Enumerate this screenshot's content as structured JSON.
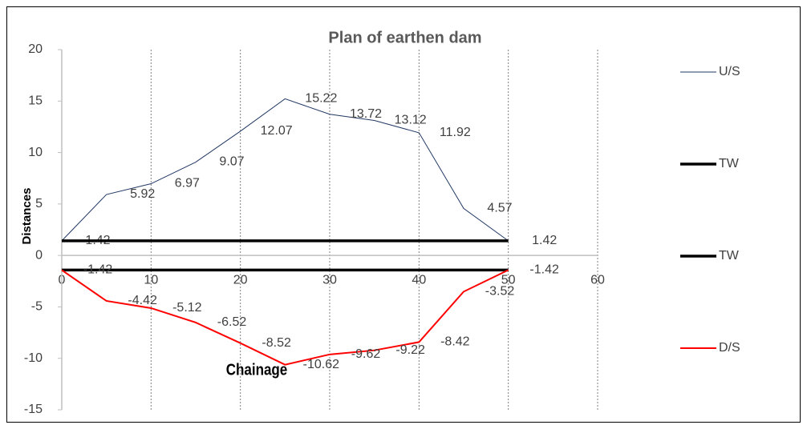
{
  "chart_data": {
    "type": "line",
    "title": "Plan of earthen dam",
    "x_label": "Chainage",
    "y_label": "Distances",
    "x": [
      0,
      5,
      10,
      15,
      20,
      25,
      30,
      35,
      40,
      45,
      50
    ],
    "series": [
      {
        "name": "U/S",
        "color": "#203864",
        "width": 1,
        "values": [
          1.42,
          5.92,
          6.97,
          9.07,
          12.07,
          15.22,
          13.72,
          13.12,
          11.92,
          4.57,
          1.42
        ],
        "data_labels": true
      },
      {
        "name": "TW",
        "color": "#000000",
        "width": 3.5,
        "x": [
          0,
          50
        ],
        "values": [
          1.42,
          1.42
        ],
        "data_labels": false
      },
      {
        "name": "TW",
        "color": "#000000",
        "width": 3.5,
        "x": [
          0,
          50
        ],
        "values": [
          -1.42,
          -1.42
        ],
        "data_labels": false
      },
      {
        "name": "D/S",
        "color": "#ff0000",
        "width": 2,
        "values": [
          -1.42,
          -4.42,
          -5.12,
          -6.52,
          -8.52,
          -10.62,
          -9.62,
          -9.22,
          -8.42,
          -3.52,
          -1.42
        ],
        "data_labels": true
      }
    ],
    "xlim": [
      0,
      60
    ],
    "xticks": [
      0,
      10,
      20,
      30,
      40,
      50,
      60
    ],
    "ylim": [
      -15,
      20
    ],
    "yticks": [
      -15,
      -10,
      -5,
      0,
      5,
      10,
      15,
      20
    ],
    "grid": "x",
    "legend": "right"
  }
}
